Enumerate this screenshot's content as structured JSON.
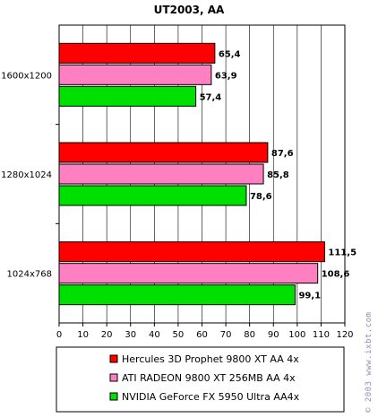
{
  "chart_data": {
    "type": "bar",
    "orientation": "horizontal",
    "title": "UT2003, AA",
    "categories": [
      "1600x1200",
      "1280x1024",
      "1024x768"
    ],
    "series": [
      {
        "name": "Hercules 3D Prophet 9800 XT AA 4x",
        "color": "#ff0000",
        "values": [
          65.4,
          87.6,
          111.5
        ],
        "labels": [
          "65,4",
          "87,6",
          "111,5"
        ]
      },
      {
        "name": "ATI RADEON 9800 XT 256MB AA 4x",
        "color": "#ff80c0",
        "values": [
          63.9,
          85.8,
          108.6
        ],
        "labels": [
          "63,9",
          "85,8",
          "108,6"
        ]
      },
      {
        "name": "NVIDIA GeForce FX 5950 Ultra AA4x",
        "color": "#00e000",
        "values": [
          57.4,
          78.6,
          99.1
        ],
        "labels": [
          "57,4",
          "78,6",
          "99,1"
        ]
      }
    ],
    "xlim": [
      0,
      120
    ],
    "xticks": [
      0,
      10,
      20,
      30,
      40,
      50,
      60,
      70,
      80,
      90,
      100,
      110,
      120
    ],
    "grid": true,
    "legend_position": "bottom"
  },
  "watermark": "© 2003 www.ixbt.com"
}
